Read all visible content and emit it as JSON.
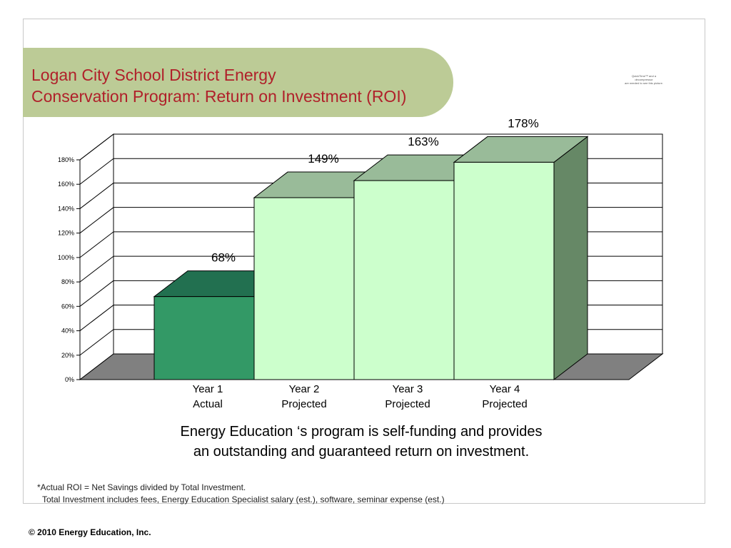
{
  "slide": {
    "title_lines": [
      "Logan City School District Energy",
      "Conservation Program: Return on Investment (ROI)"
    ],
    "quicktime_note": [
      "QuickTime™ and a",
      "decompressor",
      "are needed to see this picture."
    ],
    "caption_lines": [
      "Energy Education ‘s program is self-funding and provides",
      "an outstanding and guaranteed return on investment."
    ],
    "footnote_lines": [
      "*Actual ROI = Net Savings divided by Total Investment.",
      "Total Investment includes fees, Energy Education Specialist salary (est.), software, seminar expense (est.)"
    ],
    "copyright": "© 2010 Energy Education, Inc."
  },
  "chart_data": {
    "type": "bar",
    "style": "3d",
    "categories": [
      [
        "Year 1",
        "Actual"
      ],
      [
        "Year 2",
        "Projected"
      ],
      [
        "Year 3",
        "Projected"
      ],
      [
        "Year 4",
        "Projected"
      ]
    ],
    "values": [
      68,
      149,
      163,
      178
    ],
    "data_labels": [
      "68%",
      "149%",
      "163%",
      "178%"
    ],
    "ylim": [
      0,
      180
    ],
    "yticks": [
      0,
      20,
      40,
      60,
      80,
      100,
      120,
      140,
      160,
      180
    ],
    "ytick_labels": [
      "0%",
      "20%",
      "40%",
      "60%",
      "80%",
      "100%",
      "120%",
      "140%",
      "160%",
      "180%"
    ],
    "grid": true,
    "legend": "none",
    "colors": {
      "actual_front": "#339966",
      "actual_top": "#227050",
      "projected_front": "#ccffcc",
      "projected_top": "#99bb99",
      "side": "#668866",
      "floor": "#808080",
      "grid": "#000000"
    }
  }
}
